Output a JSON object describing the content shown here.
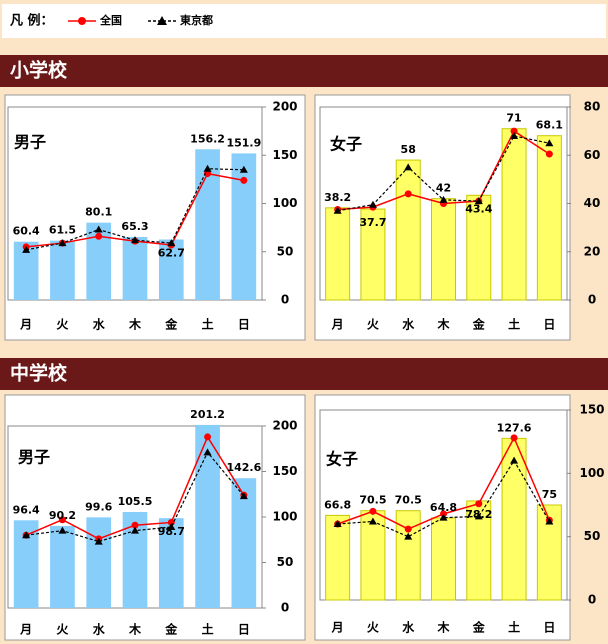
{
  "legend_title": "凡 例：",
  "sections": [
    "小学校",
    "中学校"
  ],
  "chart_data": [
    {
      "type": "bar",
      "title": "男子",
      "categories": [
        "月",
        "火",
        "水",
        "木",
        "金",
        "土",
        "日"
      ],
      "values": [
        60.4,
        61.5,
        80.1,
        65.3,
        62.7,
        156.2,
        151.9
      ],
      "color": "#87cefa",
      "series": [
        {
          "name": "全国",
          "color": "#ff0000",
          "style": "solid",
          "values": [
            55,
            59,
            66,
            61,
            57,
            131,
            124
          ]
        },
        {
          "name": "東京都",
          "color": "#000000",
          "style": "dashed",
          "values": [
            52,
            59,
            73,
            62,
            59,
            136,
            135
          ]
        }
      ],
      "ylim": [
        0,
        200
      ],
      "yticks": [
        0,
        50,
        100,
        150,
        200
      ]
    },
    {
      "type": "bar",
      "title": "女子",
      "categories": [
        "月",
        "火",
        "水",
        "木",
        "金",
        "土",
        "日"
      ],
      "values": [
        38.2,
        37.7,
        58,
        42,
        43.4,
        71,
        68.1
      ],
      "color": "#ffff66",
      "series": [
        {
          "name": "全国",
          "color": "#ff0000",
          "style": "solid",
          "values": [
            37.5,
            38.5,
            44,
            40,
            41,
            70,
            60.5
          ]
        },
        {
          "name": "東京都",
          "color": "#000000",
          "style": "dashed",
          "values": [
            37,
            39.5,
            55,
            41.5,
            41,
            68,
            65
          ]
        }
      ],
      "ylim": [
        0,
        80
      ],
      "yticks": [
        0,
        20,
        40,
        60,
        80
      ]
    },
    {
      "type": "bar",
      "title": "男子",
      "categories": [
        "月",
        "火",
        "水",
        "木",
        "金",
        "土",
        "日"
      ],
      "values": [
        96.4,
        90.2,
        99.6,
        105.5,
        98.7,
        201.2,
        142.6
      ],
      "color": "#87cefa",
      "series": [
        {
          "name": "全国",
          "color": "#ff0000",
          "style": "solid",
          "values": [
            80,
            97,
            76,
            91,
            94,
            188,
            124
          ]
        },
        {
          "name": "東京都",
          "color": "#000000",
          "style": "dashed",
          "values": [
            80,
            85,
            73,
            85,
            89,
            171,
            123
          ]
        }
      ],
      "ylim": [
        0,
        200
      ],
      "yticks": [
        0,
        50,
        100,
        150,
        200
      ]
    },
    {
      "type": "bar",
      "title": "女子",
      "categories": [
        "月",
        "火",
        "水",
        "木",
        "金",
        "土",
        "日"
      ],
      "values": [
        66.8,
        70.5,
        70.5,
        64.8,
        78.2,
        127.6,
        75
      ],
      "color": "#ffff66",
      "series": [
        {
          "name": "全国",
          "color": "#ff0000",
          "style": "solid",
          "values": [
            60,
            70,
            56,
            68,
            76,
            128,
            63
          ]
        },
        {
          "name": "東京都",
          "color": "#000000",
          "style": "dashed",
          "values": [
            60,
            62,
            50,
            65,
            66,
            110,
            62
          ]
        }
      ],
      "ylim": [
        0,
        150
      ],
      "yticks": [
        0,
        50,
        100,
        150
      ]
    }
  ]
}
